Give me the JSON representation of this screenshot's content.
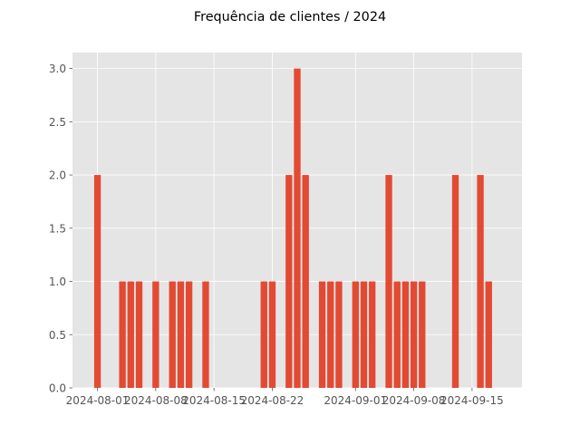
{
  "chart_data": {
    "type": "bar",
    "title": "Frequência de clientes / 2024",
    "xlabel": "",
    "ylabel": "",
    "x_tick_labels": [
      "2024-08-01",
      "2024-08-08",
      "2024-08-15",
      "2024-08-22",
      "2024-09-01",
      "2024-09-08",
      "2024-09-15"
    ],
    "y_tick_labels": [
      "0.0",
      "0.5",
      "1.0",
      "1.5",
      "2.0",
      "2.5",
      "3.0"
    ],
    "xlim": [
      "2024-07-29",
      "2024-09-21"
    ],
    "ylim": [
      0,
      3.15
    ],
    "grid": true,
    "style": "ggplot",
    "colors": {
      "bar": "#E24A33",
      "plot_bg": "#E5E5E5",
      "grid": "#FFFFFF",
      "tick_text": "#555555",
      "figure_bg": "#FFFFFF"
    },
    "dates": [
      "2024-08-01",
      "2024-08-04",
      "2024-08-05",
      "2024-08-06",
      "2024-08-08",
      "2024-08-10",
      "2024-08-11",
      "2024-08-12",
      "2024-08-14",
      "2024-08-21",
      "2024-08-22",
      "2024-08-24",
      "2024-08-25",
      "2024-08-26",
      "2024-08-28",
      "2024-08-29",
      "2024-08-30",
      "2024-09-01",
      "2024-09-02",
      "2024-09-03",
      "2024-09-05",
      "2024-09-06",
      "2024-09-07",
      "2024-09-08",
      "2024-09-09",
      "2024-09-13",
      "2024-09-16",
      "2024-09-17"
    ],
    "values": [
      2,
      1,
      1,
      1,
      1,
      1,
      1,
      1,
      1,
      1,
      1,
      2,
      3,
      2,
      1,
      1,
      1,
      1,
      1,
      1,
      2,
      1,
      1,
      1,
      1,
      2,
      2,
      1
    ]
  }
}
